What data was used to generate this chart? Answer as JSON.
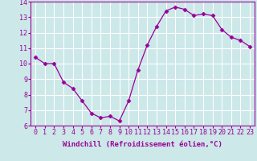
{
  "x": [
    0,
    1,
    2,
    3,
    4,
    5,
    6,
    7,
    8,
    9,
    10,
    11,
    12,
    13,
    14,
    15,
    16,
    17,
    18,
    19,
    20,
    21,
    22,
    23
  ],
  "y": [
    10.4,
    10.0,
    10.0,
    8.8,
    8.4,
    7.6,
    6.8,
    6.5,
    6.6,
    6.3,
    7.6,
    9.6,
    11.2,
    12.4,
    13.4,
    13.65,
    13.5,
    13.1,
    13.2,
    13.1,
    12.2,
    11.7,
    11.5,
    11.1
  ],
  "line_color": "#990099",
  "marker": "D",
  "marker_size": 2.5,
  "bg_color": "#cce8e8",
  "grid_color": "#ffffff",
  "ylim": [
    6,
    14
  ],
  "xlim": [
    -0.5,
    23.5
  ],
  "yticks": [
    6,
    7,
    8,
    9,
    10,
    11,
    12,
    13,
    14
  ],
  "xticks": [
    0,
    1,
    2,
    3,
    4,
    5,
    6,
    7,
    8,
    9,
    10,
    11,
    12,
    13,
    14,
    15,
    16,
    17,
    18,
    19,
    20,
    21,
    22,
    23
  ],
  "xlabel": "Windchill (Refroidissement éolien,°C)",
  "xlabel_fontsize": 6.5,
  "tick_fontsize": 6.0,
  "axis_label_color": "#990099",
  "tick_label_color": "#990099",
  "spine_color": "#990099"
}
